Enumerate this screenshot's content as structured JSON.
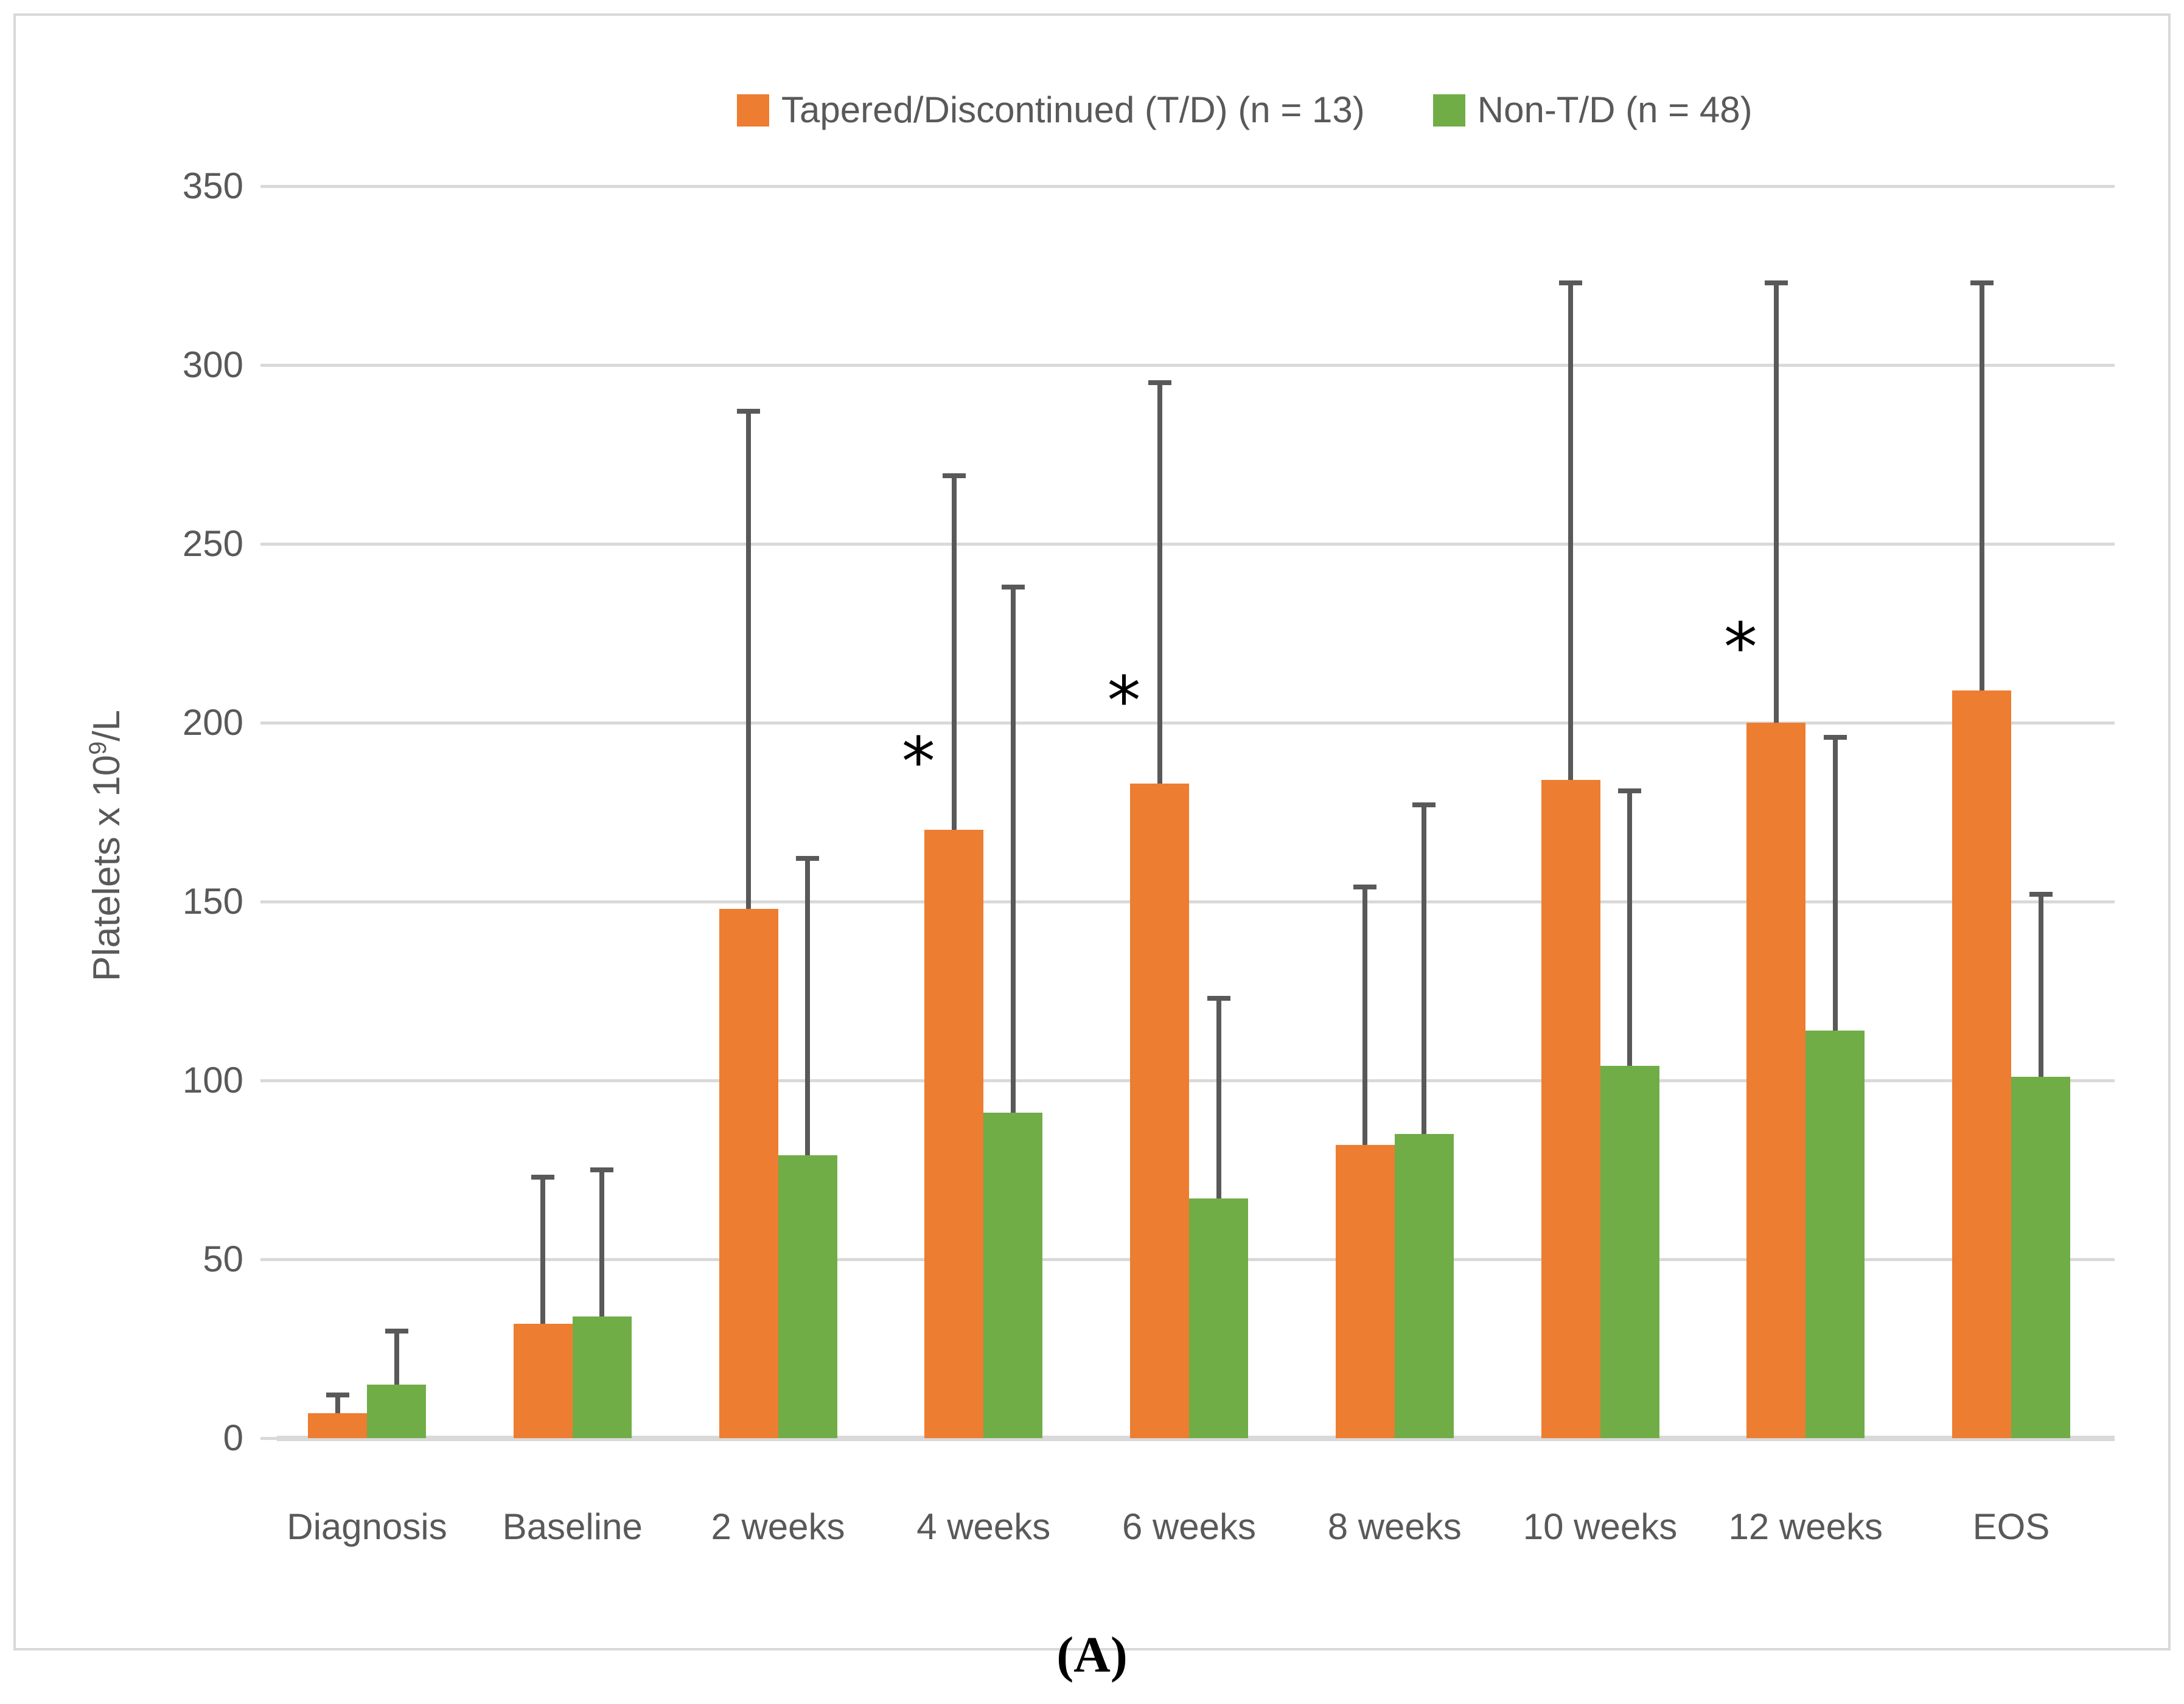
{
  "chart_data": {
    "type": "bar",
    "title": "",
    "ylabel": "Platelets x 10⁹/L",
    "ylabel_parts": {
      "prefix": "Platelets x 10",
      "sup": "9",
      "suffix": "/L"
    },
    "xlabel": "",
    "grid": "horizontal",
    "legend_position": "top-center",
    "y_axis": {
      "min": 0,
      "max": 350,
      "step": 50,
      "tick_labels": [
        "0",
        "50",
        "100",
        "150",
        "200",
        "250",
        "300",
        "350"
      ]
    },
    "categories": [
      "Diagnosis",
      "Baseline",
      "2 weeks",
      "4 weeks",
      "6 weeks",
      "8 weeks",
      "10 weeks",
      "12 weeks",
      "EOS"
    ],
    "series": [
      {
        "name": "Tapered/Discontinued (T/D) (n = 13)",
        "color": "#ED7D31",
        "values": [
          7,
          32,
          148,
          170,
          183,
          82,
          184,
          200,
          209
        ],
        "error_bar_tops": [
          12,
          73,
          287,
          269,
          295,
          154,
          323,
          323,
          323
        ]
      },
      {
        "name": "Non-T/D (n = 48)",
        "color": "#70AD47",
        "values": [
          15,
          34,
          79,
          91,
          67,
          85,
          104,
          114,
          101
        ],
        "error_bar_tops": [
          30,
          75,
          162,
          238,
          123,
          177,
          181,
          196,
          152
        ]
      }
    ],
    "significance_markers": [
      {
        "category": "4 weeks",
        "symbol": "*",
        "value": 192
      },
      {
        "category": "6 weeks",
        "symbol": "*",
        "value": 209
      },
      {
        "category": "12 weeks",
        "symbol": "*",
        "value": 224
      }
    ]
  },
  "colors": {
    "series_td": "#ED7D31",
    "series_non_td": "#70AD47",
    "error_bar": "#595959",
    "gridline": "#D9D9D9",
    "axis_text": "#595959",
    "frame_border": "#D9D9D9"
  },
  "caption": "(A)"
}
